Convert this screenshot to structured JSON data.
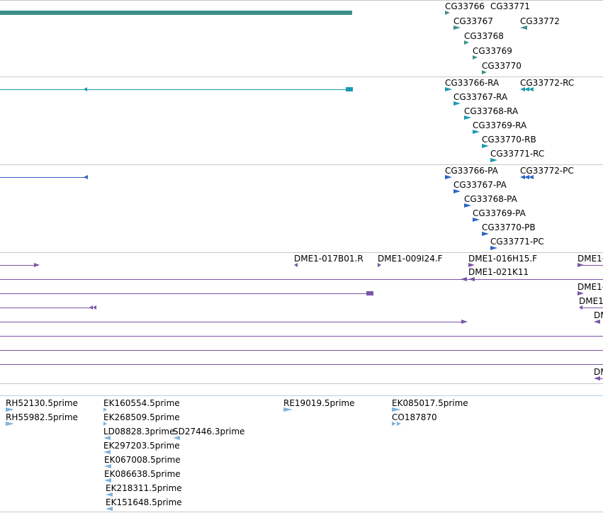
{
  "colors": {
    "gene": "#3d8f8a",
    "transcript": "#1a9ab0",
    "protein": "#2f64c7",
    "clone": "#7a55a8",
    "est": "#7fb3dc",
    "divider": "#c8c8c8"
  },
  "tracks": {
    "genes": {
      "labels": [
        "CG33766",
        "CG33771",
        "CG33767",
        "CG33772",
        "CG33768",
        "CG33769",
        "CG33770"
      ]
    },
    "transcripts": {
      "labels": [
        "CG33766-RA",
        "CG33772-RC",
        "CG33767-RA",
        "CG33768-RA",
        "CG33769-RA",
        "CG33770-RB",
        "CG33771-RC"
      ]
    },
    "proteins": {
      "labels": [
        "CG33766-PA",
        "CG33772-PC",
        "CG33767-PA",
        "CG33768-PA",
        "CG33769-PA",
        "CG33770-PB",
        "CG33771-PC"
      ]
    },
    "clones": {
      "labels": [
        "DME1-017B01.R",
        "DME1-009I24.F",
        "DME1-016H15.F",
        "DME1-021K11",
        "DME1-",
        "DME1-",
        "DME1",
        "DM",
        "DM"
      ]
    },
    "ests": {
      "labels": [
        "RH52130.5prime",
        "RH55982.5prime",
        "EK160554.5prime",
        "EK268509.5prime",
        "LD08828.3prime",
        "SD27446.3prime",
        "EK297203.5prime",
        "EK067008.5prime",
        "EK086638.5prime",
        "EK218311.5prime",
        "EK151648.5prime",
        "RE19019.5prime",
        "EK085017.5prime",
        "CO187870"
      ]
    }
  }
}
